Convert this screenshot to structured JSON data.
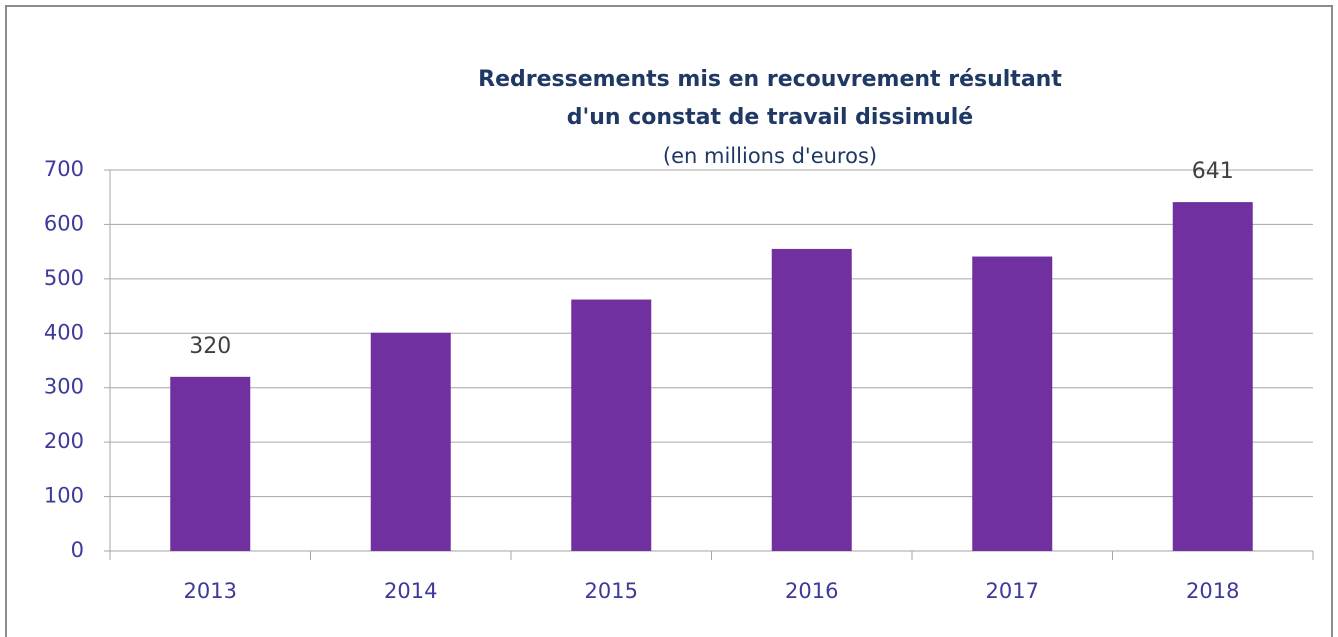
{
  "chart_data": {
    "type": "bar",
    "title": [
      "Redressements mis en recouvrement résultant",
      "d'un constat de travail dissimulé"
    ],
    "subtitle": "(en millions d'euros)",
    "categories": [
      "2013",
      "2014",
      "2015",
      "2016",
      "2017",
      "2018"
    ],
    "values": [
      320,
      401,
      462,
      555,
      541,
      641
    ],
    "value_labels": [
      "320",
      null,
      null,
      null,
      null,
      "641"
    ],
    "color": "#7030a0",
    "ylim": [
      0,
      700
    ],
    "yticks": [
      0,
      100,
      200,
      300,
      400,
      500,
      600,
      700
    ],
    "grid": true
  }
}
